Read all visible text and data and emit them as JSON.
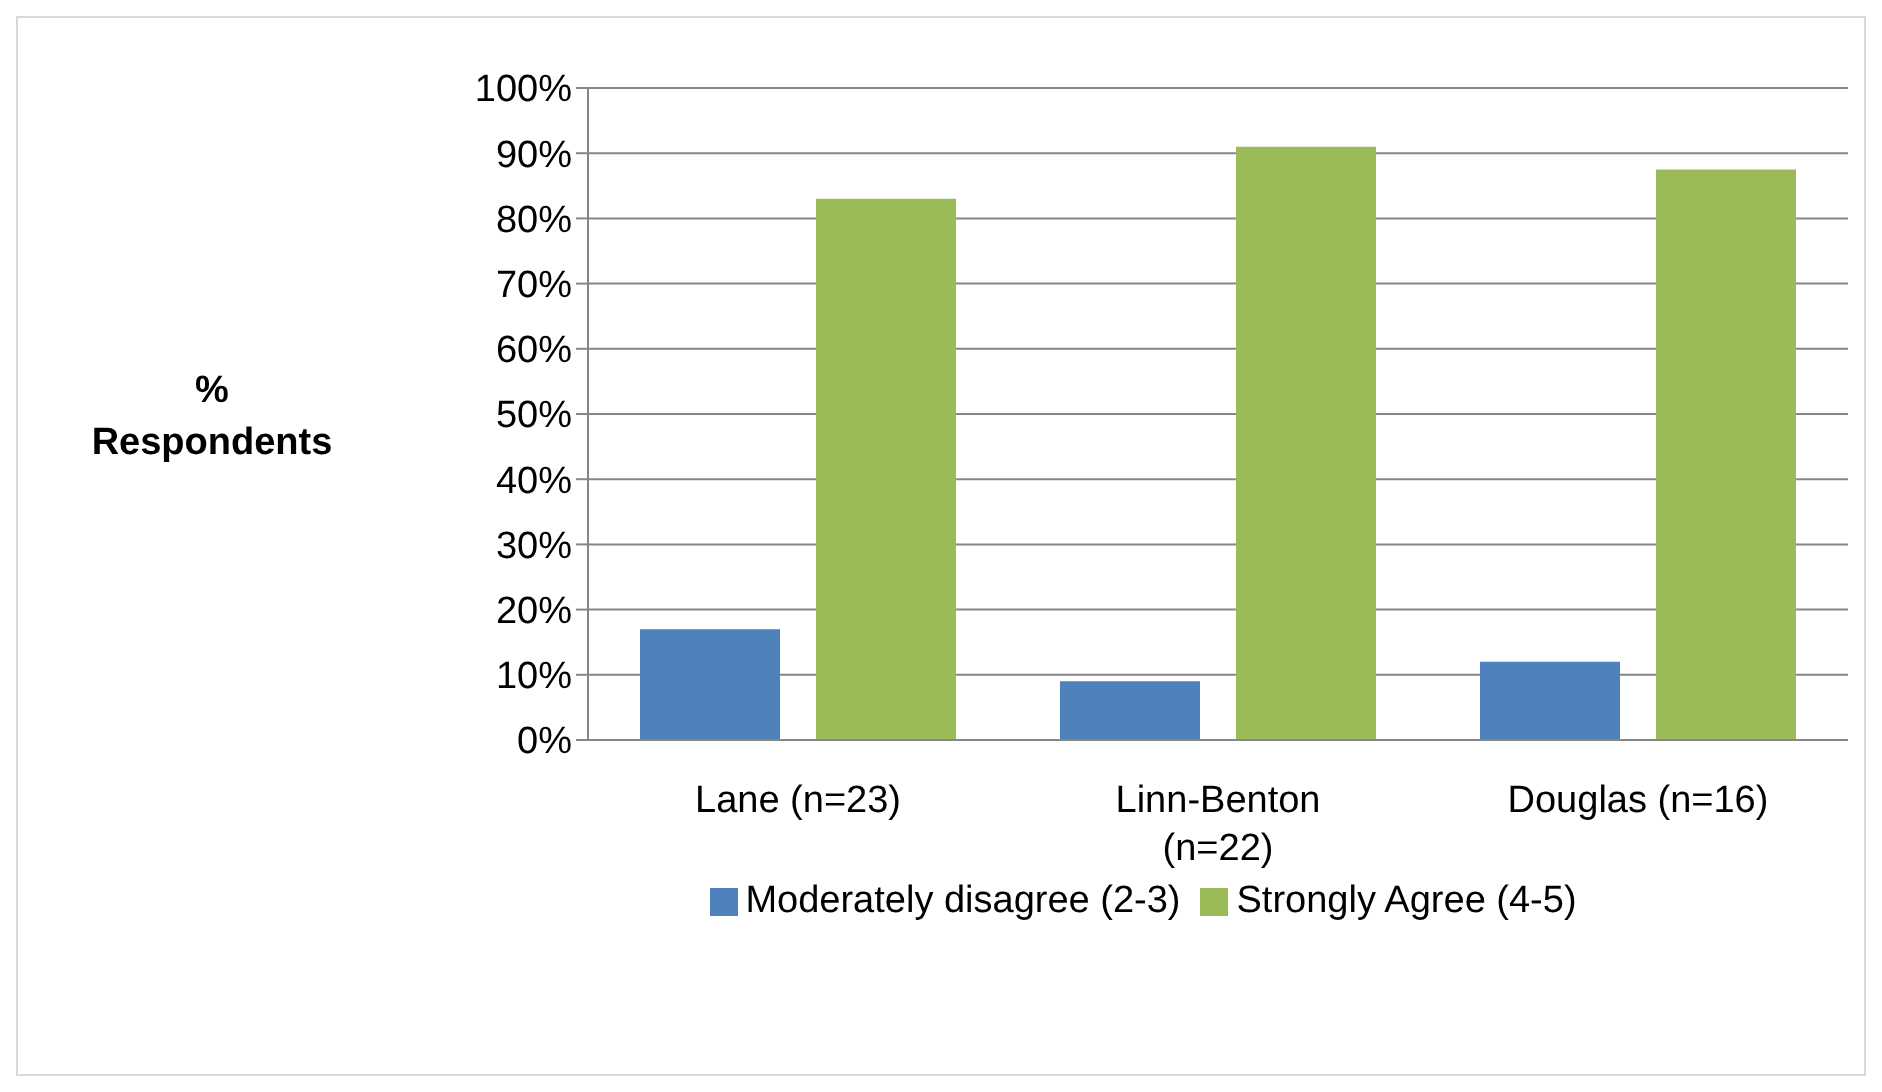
{
  "chart_data": {
    "type": "bar",
    "ylabel": "% Respondents",
    "categories": [
      "Lane (n=23)",
      "Linn-Benton (n=22)",
      "Douglas (n=16)"
    ],
    "series": [
      {
        "name": "Moderately disagree (2-3)",
        "color": "#4f81bd",
        "values": [
          17,
          9,
          12
        ]
      },
      {
        "name": "Strongly Agree (4-5)",
        "color": "#9bbb59",
        "values": [
          83,
          91,
          87.5
        ]
      }
    ],
    "ylim": [
      0,
      100
    ],
    "yticks": [
      {
        "value": 0,
        "label": "0%"
      },
      {
        "value": 10,
        "label": "10%"
      },
      {
        "value": 20,
        "label": "20%"
      },
      {
        "value": 30,
        "label": "30%"
      },
      {
        "value": 40,
        "label": "40%"
      },
      {
        "value": 50,
        "label": "50%"
      },
      {
        "value": 60,
        "label": "60%"
      },
      {
        "value": 70,
        "label": "70%"
      },
      {
        "value": 80,
        "label": "80%"
      },
      {
        "value": 90,
        "label": "90%"
      },
      {
        "value": 100,
        "label": "100%"
      }
    ],
    "grid": "y",
    "legend": "bottom"
  }
}
